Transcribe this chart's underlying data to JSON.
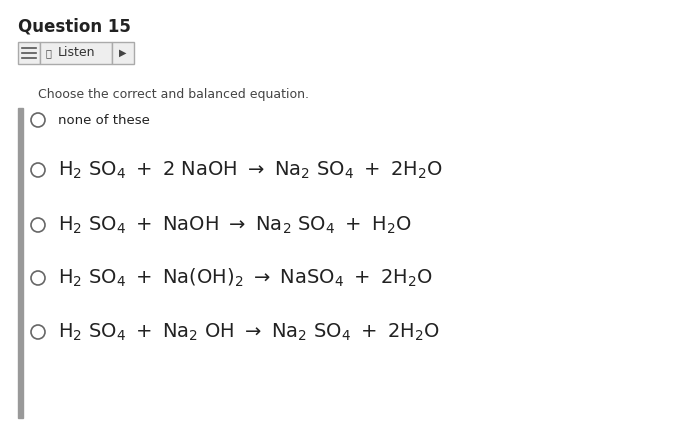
{
  "title": "Question 15",
  "subtitle": "Choose the correct and balanced equation.",
  "bg_color": "#ffffff",
  "text_color": "#222222",
  "listen_label": "Listen",
  "left_bar_color": "#999999",
  "button_bg": "#eeeeee",
  "button_border": "#bbbbbb",
  "figsize": [
    7.0,
    4.32
  ],
  "dpi": 100,
  "xlim": [
    0,
    700
  ],
  "ylim": [
    0,
    432
  ]
}
